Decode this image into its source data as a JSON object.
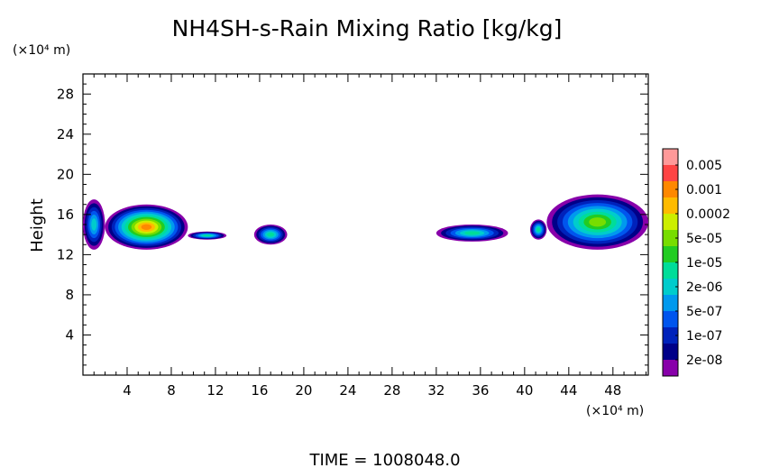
{
  "chart_data": {
    "type": "heatmap",
    "title": "NH4SH-s-Rain Mixing Ratio [kg/kg]",
    "ylabel": "Height",
    "y_unit_label": "(×10⁴ m)",
    "x_unit_label": "(×10⁴ m)",
    "xlim": [
      0,
      51.2
    ],
    "ylim": [
      0,
      30
    ],
    "x_ticks": [
      "4",
      "8",
      "12",
      "16",
      "20",
      "24",
      "28",
      "32",
      "36",
      "40",
      "44",
      "48"
    ],
    "y_ticks": [
      "4",
      "8",
      "12",
      "16",
      "20",
      "24",
      "28"
    ],
    "colorbar": {
      "labels": [
        "0.005",
        "0.001",
        "0.0002",
        "5e-05",
        "1e-05",
        "2e-06",
        "5e-07",
        "1e-07",
        "2e-08"
      ],
      "colors": [
        "#ff9999",
        "#ff4444",
        "#ff8800",
        "#ffbb00",
        "#ccee00",
        "#77dd00",
        "#22cc22",
        "#00dd99",
        "#00cccc",
        "#0099ee",
        "#0055ee",
        "#0022bb",
        "#000088",
        "#8800aa"
      ]
    },
    "regions": [
      {
        "x": [
          0.0,
          2.0
        ],
        "y": [
          12.5,
          17.5
        ],
        "peak": "2e-06"
      },
      {
        "x": [
          2.0,
          9.5
        ],
        "y": [
          12.5,
          17.0
        ],
        "peak": "0.001"
      },
      {
        "x": [
          9.5,
          13.0
        ],
        "y": [
          13.5,
          14.3
        ],
        "peak": "1e-05"
      },
      {
        "x": [
          15.5,
          18.5
        ],
        "y": [
          13.0,
          15.0
        ],
        "peak": "1e-05"
      },
      {
        "x": [
          32.0,
          38.5
        ],
        "y": [
          13.3,
          15.0
        ],
        "peak": "1e-05"
      },
      {
        "x": [
          40.5,
          42.0
        ],
        "y": [
          13.5,
          15.5
        ],
        "peak": "1e-05"
      },
      {
        "x": [
          42.0,
          51.2
        ],
        "y": [
          12.5,
          18.0
        ],
        "peak": "5e-05"
      }
    ]
  },
  "footer": {
    "time_label": "TIME = 1008048.0"
  }
}
